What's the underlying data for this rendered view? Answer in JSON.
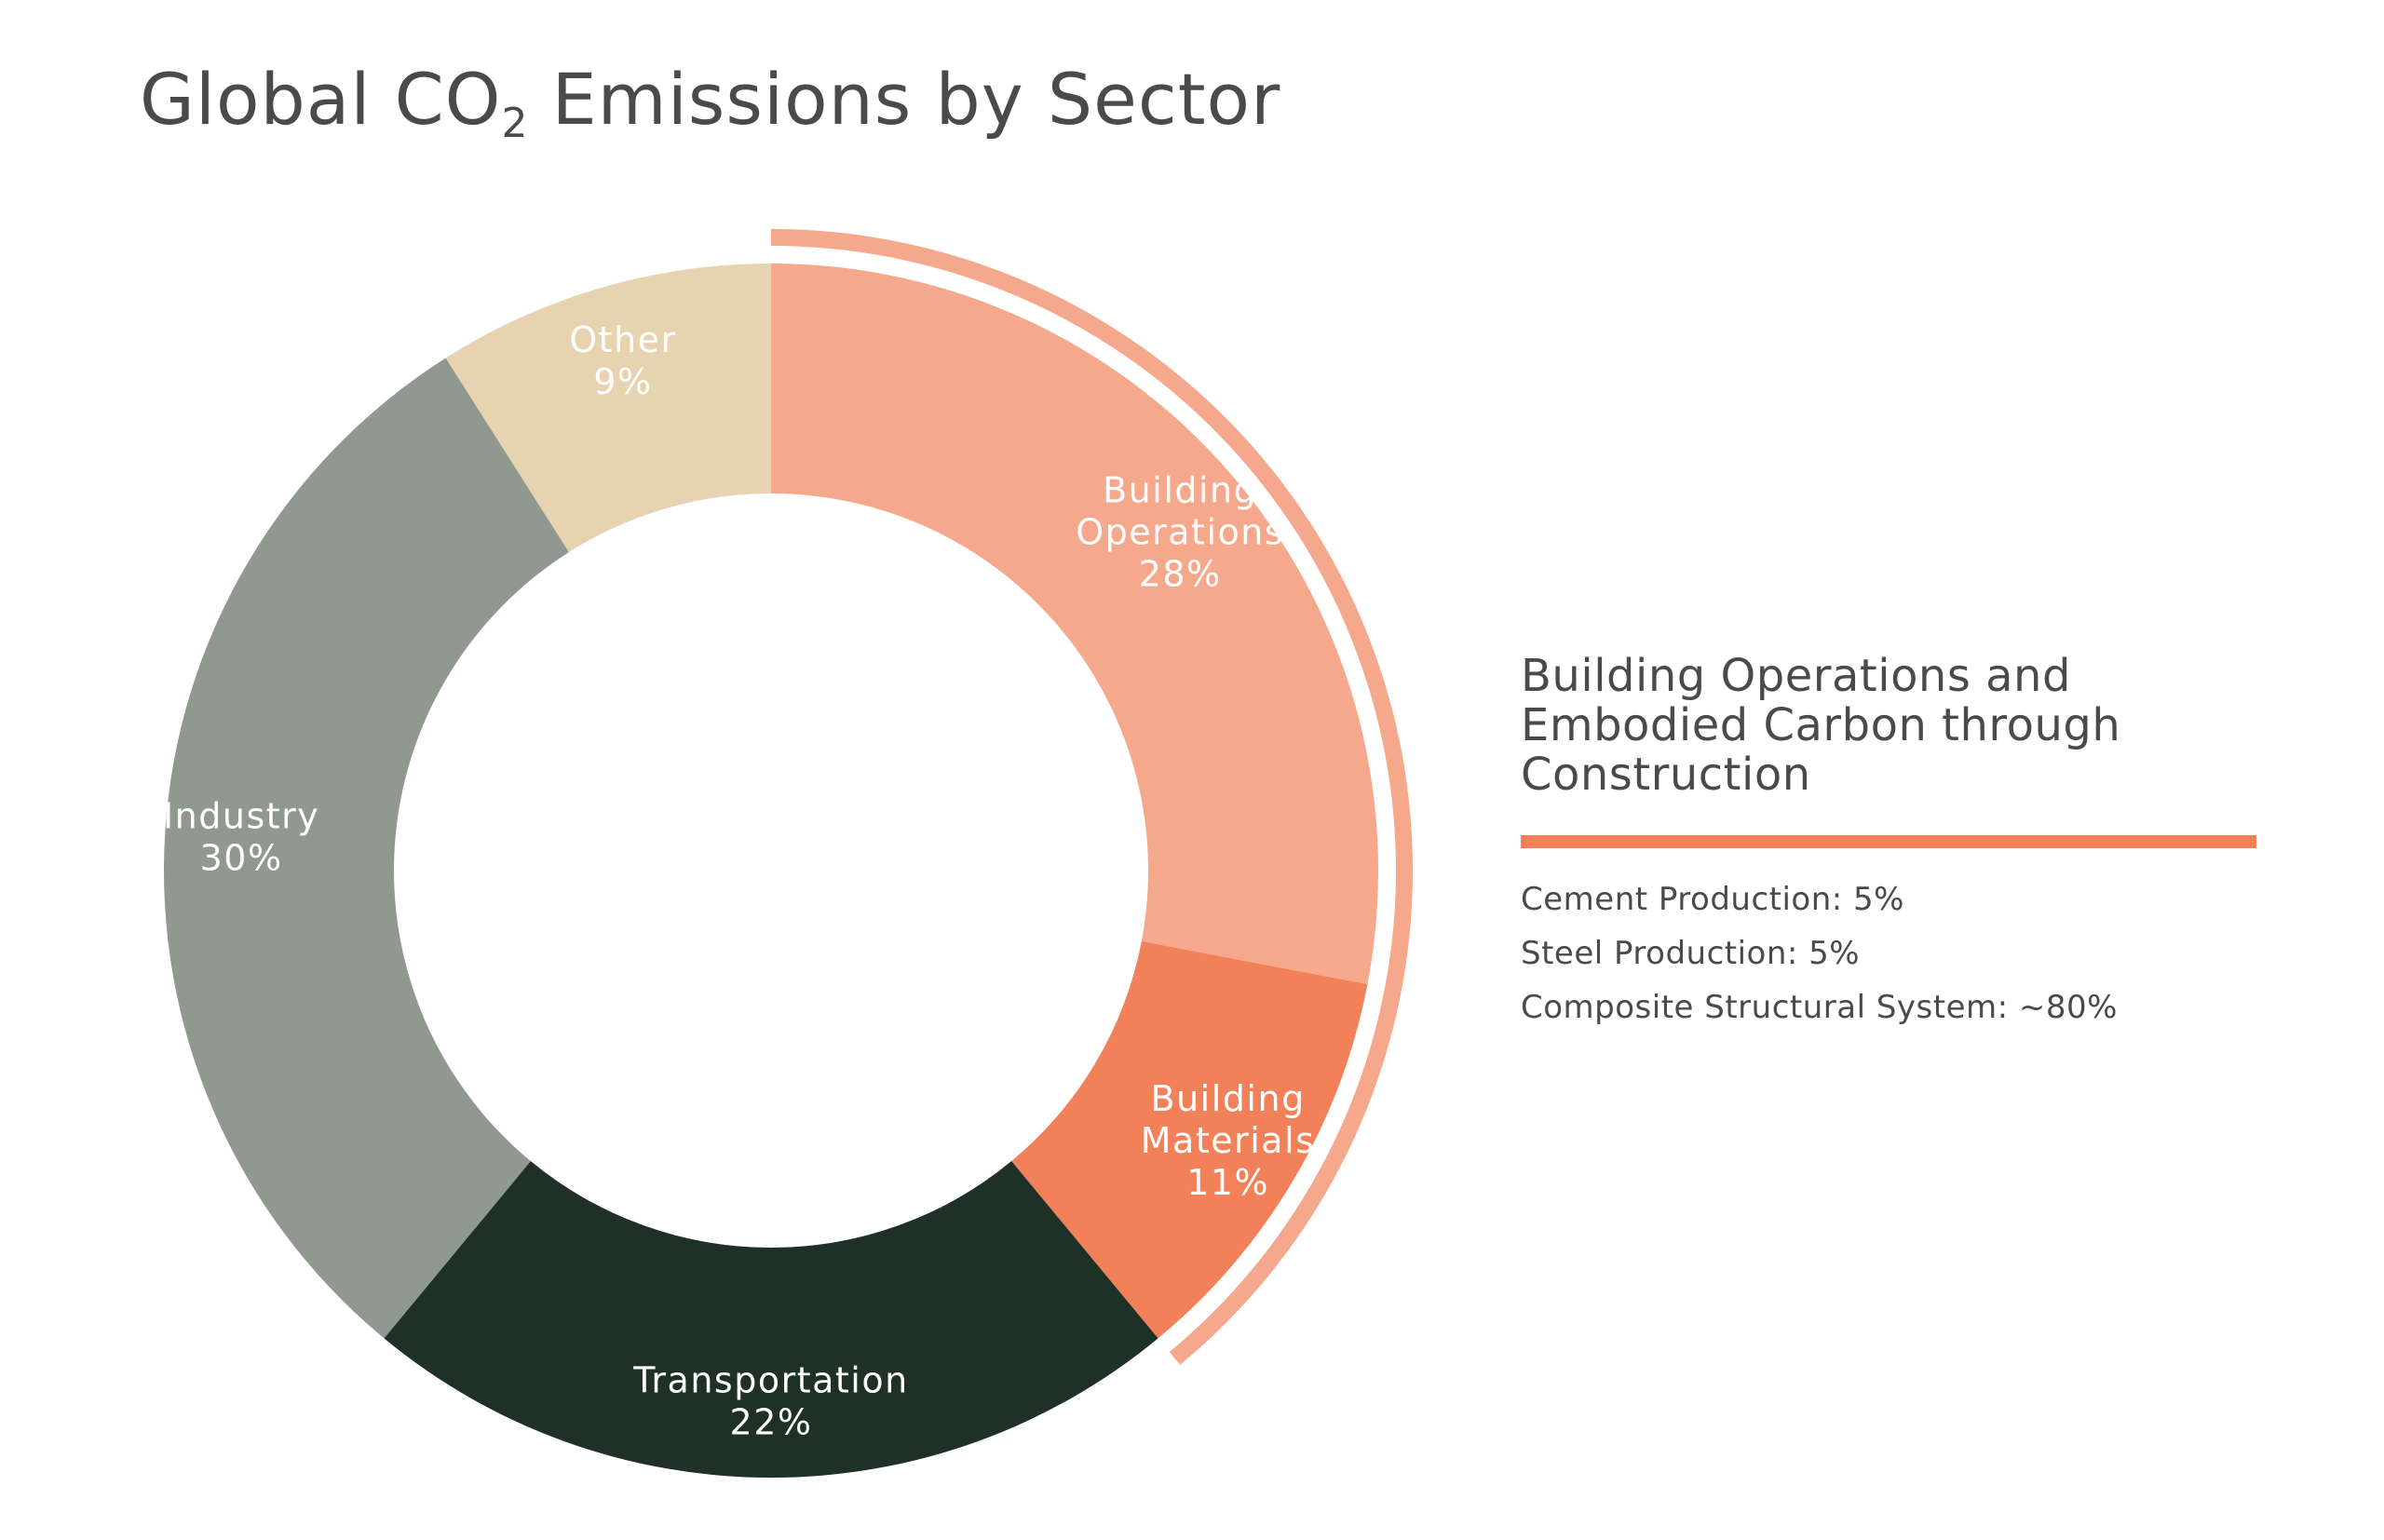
{
  "title_main": "Global CO",
  "title_sub": "2",
  "title_rest": " Emissions by Sector",
  "chart_data": {
    "type": "pie",
    "variant": "donut",
    "title": "Global CO2 Emissions by Sector",
    "start_angle_deg": 0,
    "direction": "clockwise",
    "slices": [
      {
        "label_lines": [
          "Building",
          "Operations"
        ],
        "value": 28,
        "display": "28%",
        "color": "#f6a88d"
      },
      {
        "label_lines": [
          "Building",
          "Materials"
        ],
        "value": 11,
        "display": "11%",
        "color": "#f28059"
      },
      {
        "label_lines": [
          "Transportation"
        ],
        "value": 22,
        "display": "22%",
        "color": "#1f3126"
      },
      {
        "label_lines": [
          "Industry"
        ],
        "value": 30,
        "display": "30%",
        "color": "#8f9990"
      },
      {
        "label_lines": [
          "Other"
        ],
        "value": 9,
        "display": "9%",
        "color": "#e8d3b0"
      }
    ],
    "highlight_arc": {
      "covers": [
        "Building Operations",
        "Building Materials"
      ],
      "color": "#f6a88d"
    }
  },
  "callout": {
    "title": "Building Operations and Embodied Carbon through Construction",
    "rule_color": "#f28059",
    "items": [
      "Cement Production: 5%",
      "Steel Production: 5%",
      "Composite Structural System: ~80%"
    ]
  }
}
